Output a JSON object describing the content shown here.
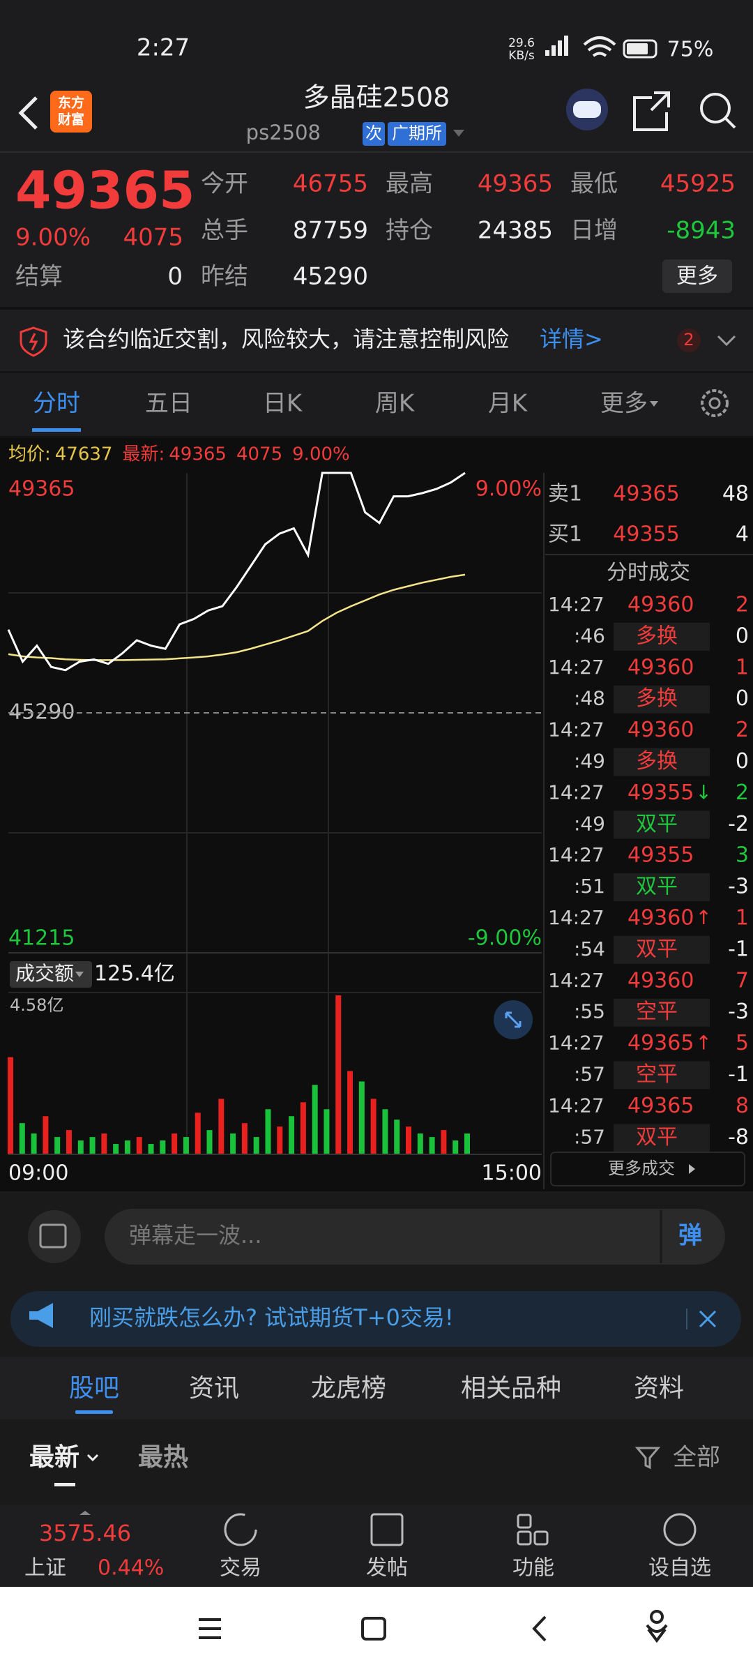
{
  "status_bar": {
    "time": "2:27",
    "net_speed": "29.6",
    "net_unit": "KB/s",
    "battery": "75%"
  },
  "header": {
    "logo": [
      "东方",
      "财富"
    ],
    "title": "多晶硅2508",
    "code": "ps2508",
    "badges": [
      "次",
      "广期所"
    ]
  },
  "quote": {
    "price": 49365,
    "change_pct": "9.00%",
    "change": 4075,
    "more": "更多",
    "fields": [
      {
        "label": "今开",
        "value": 46755,
        "color": "#f23b3b"
      },
      {
        "label": "最高",
        "value": 49365,
        "color": "#f23b3b"
      },
      {
        "label": "最低",
        "value": 45925,
        "color": "#f23b3b"
      },
      {
        "label": "总手",
        "value": 87759,
        "color": "#ededed"
      },
      {
        "label": "持仓",
        "value": 24385,
        "color": "#ededed"
      },
      {
        "label": "日增",
        "value": -8943,
        "color": "#1ec73c"
      },
      {
        "label": "结算",
        "value": 0,
        "color": "#ededed"
      },
      {
        "label": "昨结",
        "value": 45290,
        "color": "#ededed"
      }
    ]
  },
  "warning": {
    "text": "该合约临近交割，风险较大，请注意控制风险",
    "link": "详情>",
    "count": 2
  },
  "tabs": [
    "分时",
    "五日",
    "日K",
    "周K",
    "月K",
    "更多"
  ],
  "summary": {
    "avg_label": "均价:",
    "avg_value": 47637,
    "latest_label": "最新:",
    "latest_value": 49365,
    "latest_change": 4075,
    "latest_pct": "9.00%"
  },
  "intraday": {
    "price_ticks": [
      49365,
      45290,
      41215
    ],
    "pct_labels": [
      "9.00%",
      "-9.00%"
    ],
    "time_labels": [
      "09:00",
      "15:00"
    ],
    "price": {
      "color": "#ffffff",
      "values": [
        46703,
        46160,
        46431,
        46069,
        46015,
        46160,
        46196,
        46123,
        46304,
        46522,
        46431,
        46377,
        46793,
        46884,
        47029,
        47101,
        47427,
        47789,
        48152,
        48333,
        48423,
        47971,
        49365,
        49365,
        49365,
        48695,
        48514,
        48967,
        48967,
        49021,
        49093,
        49202,
        49365
      ]
    },
    "avg": {
      "color": "#f5e58a",
      "values": [
        46286,
        46250,
        46230,
        46220,
        46200,
        46190,
        46185,
        46185,
        46185,
        46190,
        46195,
        46200,
        46215,
        46230,
        46250,
        46280,
        46320,
        46380,
        46450,
        46520,
        46600,
        46680,
        46850,
        46990,
        47100,
        47200,
        47300,
        47380,
        47440,
        47500,
        47550,
        47600,
        47637
      ]
    }
  },
  "volume": {
    "label": "成交额",
    "total": "125.4亿",
    "max_tick": {
      "value": 4.58,
      "label": "4.58亿"
    },
    "up": {
      "color": "#e8211f",
      "values": [
        2.8,
        null,
        null,
        1.1,
        null,
        0.7,
        null,
        null,
        0.6,
        null,
        null,
        0.5,
        null,
        null,
        0.6,
        null,
        1.2,
        null,
        1.6,
        null,
        0.9,
        null,
        null,
        0.8,
        null,
        1.5,
        null,
        null,
        4.58,
        2.4,
        null,
        1.6,
        null,
        null,
        0.8,
        null,
        null,
        0.7,
        null,
        null
      ]
    },
    "down": {
      "color": "#19c23a",
      "values": [
        null,
        0.9,
        0.6,
        null,
        0.5,
        null,
        0.4,
        0.5,
        null,
        0.3,
        0.4,
        null,
        0.3,
        0.4,
        null,
        0.5,
        null,
        0.7,
        null,
        0.6,
        null,
        0.5,
        1.3,
        null,
        1.1,
        null,
        2.0,
        1.3,
        null,
        null,
        2.1,
        null,
        1.3,
        1.0,
        null,
        0.6,
        0.5,
        null,
        0.4,
        0.6
      ]
    }
  },
  "order_book": {
    "ask": {
      "label": "卖1",
      "price": 49365,
      "volume": 48
    },
    "bid": {
      "label": "买1",
      "price": 49355,
      "volume": 4
    }
  },
  "trades": {
    "title": "分时成交",
    "more": "更多成交",
    "rows": [
      {
        "time": "14:27",
        "price": 49360,
        "volume": 2,
        "volume_color": "#f23b3b",
        "second": ":46",
        "kind": "多换",
        "kind_color": "#f23b3b",
        "change": 0
      },
      {
        "time": "14:27",
        "price": 49360,
        "volume": 1,
        "volume_color": "#f23b3b",
        "second": ":48",
        "kind": "多换",
        "kind_color": "#f23b3b",
        "change": 0
      },
      {
        "time": "14:27",
        "price": 49360,
        "volume": 2,
        "volume_color": "#f23b3b",
        "second": ":49",
        "kind": "多换",
        "kind_color": "#f23b3b",
        "change": 0
      },
      {
        "time": "14:27",
        "price": 49355,
        "arrow": "↓",
        "arrow_color": "#1ec73c",
        "volume": 2,
        "volume_color": "#1ec73c",
        "second": ":49",
        "kind": "双平",
        "kind_color": "#1ec73c",
        "change": -2
      },
      {
        "time": "14:27",
        "price": 49355,
        "volume": 3,
        "volume_color": "#1ec73c",
        "second": ":51",
        "kind": "双平",
        "kind_color": "#1ec73c",
        "change": -3
      },
      {
        "time": "14:27",
        "price": 49360,
        "arrow": "↑",
        "arrow_color": "#f23b3b",
        "volume": 1,
        "volume_color": "#f23b3b",
        "second": ":54",
        "kind": "双平",
        "kind_color": "#f23b3b",
        "change": -1
      },
      {
        "time": "14:27",
        "price": 49360,
        "volume": 7,
        "volume_color": "#f23b3b",
        "second": ":55",
        "kind": "空平",
        "kind_color": "#f23b3b",
        "change": -3
      },
      {
        "time": "14:27",
        "price": 49365,
        "arrow": "↑",
        "arrow_color": "#f23b3b",
        "volume": 5,
        "volume_color": "#f23b3b",
        "second": ":57",
        "kind": "空平",
        "kind_color": "#f23b3b",
        "change": -1
      },
      {
        "time": "14:27",
        "price": 49365,
        "volume": 8,
        "volume_color": "#f23b3b",
        "second": ":57",
        "kind": "双平",
        "kind_color": "#f23b3b",
        "change": -8
      }
    ]
  },
  "barrage": {
    "placeholder": "弹幕走一波...",
    "button": "弹"
  },
  "ad": {
    "text": "刚买就跌怎么办? 试试期货T+0交易!"
  },
  "section_tabs": [
    "股吧",
    "资讯",
    "龙虎榜",
    "相关品种",
    "资料"
  ],
  "sort": {
    "options": [
      "最新",
      "最热"
    ],
    "filter": "全部"
  },
  "bottom_bar": {
    "index_price": 3575.46,
    "index_name": "上证",
    "index_pct": "0.44%",
    "actions": [
      "交易",
      "发帖",
      "功能",
      "设自选"
    ]
  }
}
